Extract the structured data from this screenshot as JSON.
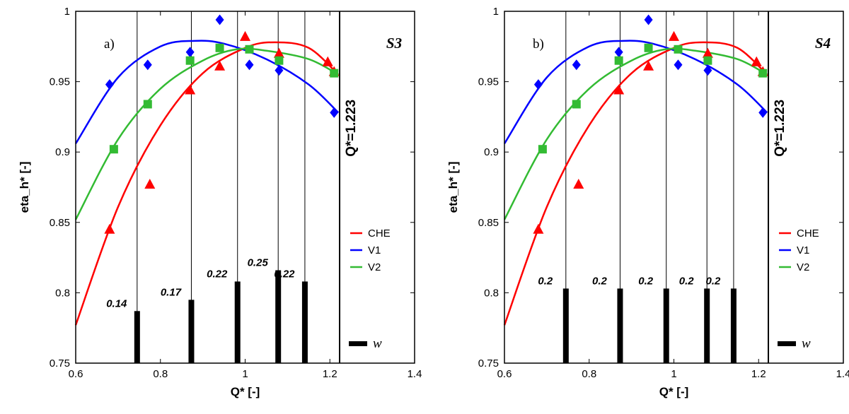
{
  "colors": {
    "CHE": "#ff0000",
    "V1": "#0000ff",
    "V2": "#33bb33",
    "w": "#000000"
  },
  "chart_data": [
    {
      "type": "scatter",
      "panel_label": "a)",
      "scheme": "S3",
      "xlabel": "Q* [-]",
      "ylabel": "eta_h* [-]",
      "xlim": [
        0.6,
        1.4
      ],
      "ylim": [
        0.75,
        1.0
      ],
      "x_ticks": [
        "0.6",
        "0.8",
        "1",
        "1.2",
        "1.4"
      ],
      "y_ticks": [
        "0.75",
        "0.8",
        "0.85",
        "0.9",
        "0.95",
        "1"
      ],
      "x_tick_values": [
        0.6,
        0.8,
        1.0,
        1.2,
        1.4
      ],
      "y_tick_values": [
        0.75,
        0.8,
        0.85,
        0.9,
        0.95,
        1.0
      ],
      "reference_line": {
        "x": 1.223,
        "label": "Q*=1.223"
      },
      "legend": [
        "CHE",
        "V1",
        "V2",
        "w"
      ],
      "series": [
        {
          "name": "CHE",
          "marker": "triangle",
          "points": [
            [
              0.68,
              0.845
            ],
            [
              0.775,
              0.877
            ],
            [
              0.87,
              0.944
            ],
            [
              0.94,
              0.961
            ],
            [
              1.0,
              0.982
            ],
            [
              1.08,
              0.97
            ],
            [
              1.195,
              0.964
            ],
            [
              1.21,
              0.957
            ]
          ],
          "fit": [
            [
              0.6,
              0.777
            ],
            [
              0.7,
              0.861
            ],
            [
              0.8,
              0.919
            ],
            [
              0.9,
              0.956
            ],
            [
              1.0,
              0.974
            ],
            [
              1.07,
              0.978
            ],
            [
              1.15,
              0.974
            ],
            [
              1.22,
              0.955
            ]
          ]
        },
        {
          "name": "V1",
          "marker": "diamond",
          "points": [
            [
              0.68,
              0.948
            ],
            [
              0.77,
              0.962
            ],
            [
              0.87,
              0.971
            ],
            [
              0.94,
              0.994
            ],
            [
              1.01,
              0.962
            ],
            [
              1.08,
              0.958
            ],
            [
              1.21,
              0.928
            ]
          ],
          "fit": [
            [
              0.6,
              0.906
            ],
            [
              0.7,
              0.953
            ],
            [
              0.8,
              0.975
            ],
            [
              0.88,
              0.979
            ],
            [
              0.95,
              0.977
            ],
            [
              1.05,
              0.966
            ],
            [
              1.15,
              0.948
            ],
            [
              1.22,
              0.928
            ]
          ]
        },
        {
          "name": "V2",
          "marker": "square",
          "points": [
            [
              0.69,
              0.902
            ],
            [
              0.77,
              0.934
            ],
            [
              0.87,
              0.965
            ],
            [
              0.94,
              0.974
            ],
            [
              1.01,
              0.973
            ],
            [
              1.08,
              0.965
            ],
            [
              1.21,
              0.956
            ]
          ],
          "fit": [
            [
              0.6,
              0.852
            ],
            [
              0.7,
              0.909
            ],
            [
              0.8,
              0.945
            ],
            [
              0.9,
              0.965
            ],
            [
              0.98,
              0.973
            ],
            [
              1.05,
              0.972
            ],
            [
              1.15,
              0.966
            ],
            [
              1.22,
              0.955
            ]
          ]
        }
      ],
      "weights": {
        "x": [
          0.745,
          0.873,
          0.982,
          1.078,
          1.141
        ],
        "bar_top": [
          0.787,
          0.795,
          0.808,
          0.816,
          0.808
        ],
        "labels": [
          "0.14",
          "0.17",
          "0.22",
          "0.25",
          "0.22"
        ]
      }
    },
    {
      "type": "scatter",
      "panel_label": "b)",
      "scheme": "S4",
      "xlabel": "Q* [-]",
      "ylabel": "eta_h* [-]",
      "xlim": [
        0.6,
        1.4
      ],
      "ylim": [
        0.75,
        1.0
      ],
      "x_ticks": [
        "0.6",
        "0.8",
        "1",
        "1.2",
        "1.4"
      ],
      "y_ticks": [
        "0.75",
        "0.8",
        "0.85",
        "0.9",
        "0.95",
        "1"
      ],
      "x_tick_values": [
        0.6,
        0.8,
        1.0,
        1.2,
        1.4
      ],
      "y_tick_values": [
        0.75,
        0.8,
        0.85,
        0.9,
        0.95,
        1.0
      ],
      "reference_line": {
        "x": 1.223,
        "label": "Q*=1.223"
      },
      "legend": [
        "CHE",
        "V1",
        "V2",
        "w"
      ],
      "series": [
        {
          "name": "CHE",
          "marker": "triangle",
          "points": [
            [
              0.68,
              0.845
            ],
            [
              0.775,
              0.877
            ],
            [
              0.87,
              0.944
            ],
            [
              0.94,
              0.961
            ],
            [
              1.0,
              0.982
            ],
            [
              1.08,
              0.97
            ],
            [
              1.195,
              0.964
            ],
            [
              1.21,
              0.957
            ]
          ],
          "fit": [
            [
              0.6,
              0.777
            ],
            [
              0.7,
              0.861
            ],
            [
              0.8,
              0.919
            ],
            [
              0.9,
              0.956
            ],
            [
              1.0,
              0.974
            ],
            [
              1.07,
              0.978
            ],
            [
              1.15,
              0.974
            ],
            [
              1.22,
              0.955
            ]
          ]
        },
        {
          "name": "V1",
          "marker": "diamond",
          "points": [
            [
              0.68,
              0.948
            ],
            [
              0.77,
              0.962
            ],
            [
              0.87,
              0.971
            ],
            [
              0.94,
              0.994
            ],
            [
              1.01,
              0.962
            ],
            [
              1.08,
              0.958
            ],
            [
              1.21,
              0.928
            ]
          ],
          "fit": [
            [
              0.6,
              0.906
            ],
            [
              0.7,
              0.953
            ],
            [
              0.8,
              0.975
            ],
            [
              0.88,
              0.979
            ],
            [
              0.95,
              0.977
            ],
            [
              1.05,
              0.966
            ],
            [
              1.15,
              0.948
            ],
            [
              1.22,
              0.928
            ]
          ]
        },
        {
          "name": "V2",
          "marker": "square",
          "points": [
            [
              0.69,
              0.902
            ],
            [
              0.77,
              0.934
            ],
            [
              0.87,
              0.965
            ],
            [
              0.94,
              0.974
            ],
            [
              1.01,
              0.973
            ],
            [
              1.08,
              0.965
            ],
            [
              1.21,
              0.956
            ]
          ],
          "fit": [
            [
              0.6,
              0.852
            ],
            [
              0.7,
              0.909
            ],
            [
              0.8,
              0.945
            ],
            [
              0.9,
              0.965
            ],
            [
              0.98,
              0.973
            ],
            [
              1.05,
              0.972
            ],
            [
              1.15,
              0.966
            ],
            [
              1.22,
              0.955
            ]
          ]
        }
      ],
      "weights": {
        "x": [
          0.745,
          0.873,
          0.982,
          1.078,
          1.141
        ],
        "bar_top": [
          0.803,
          0.803,
          0.803,
          0.803,
          0.803
        ],
        "labels": [
          "0.2",
          "0.2",
          "0.2",
          "0.2",
          "0.2"
        ]
      }
    }
  ]
}
